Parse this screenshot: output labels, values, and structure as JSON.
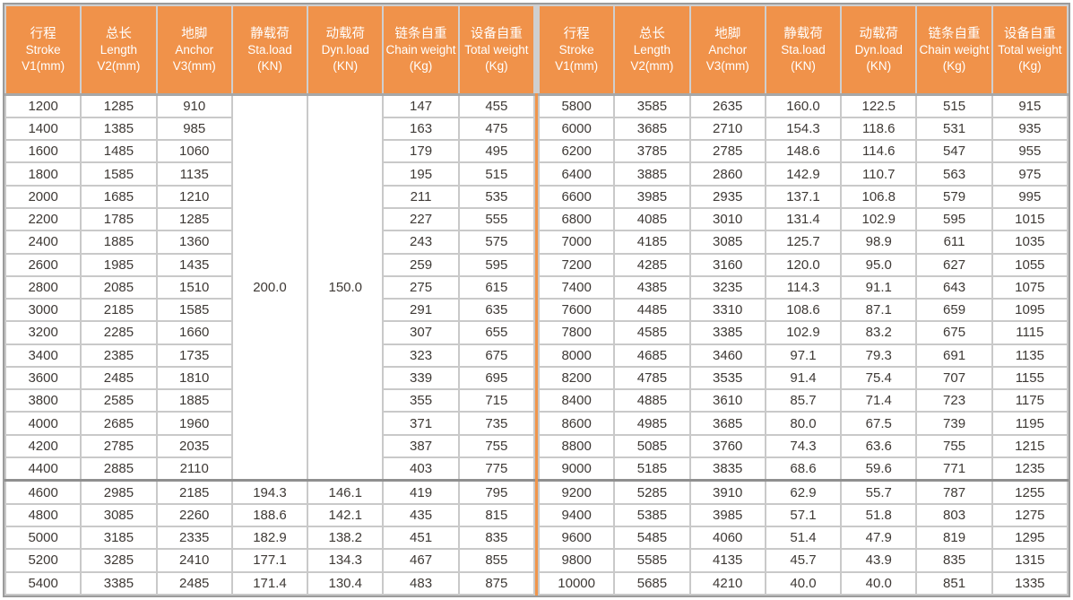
{
  "colors": {
    "header_bg": "#f0924a",
    "header_text": "#ffffff",
    "grid_line": "#c9c9c9",
    "major_line": "#8f8f8f",
    "outer_border": "#9b9b9b",
    "center_divider": "#f0954b",
    "body_text": "#3e3935"
  },
  "header_columns": [
    {
      "cn": "行程",
      "en": "Stroke",
      "unit": "V1(mm)"
    },
    {
      "cn": "总长",
      "en": "Length",
      "unit": "V2(mm)"
    },
    {
      "cn": "地脚",
      "en": "Anchor",
      "unit": "V3(mm)"
    },
    {
      "cn": "静载荷",
      "en": "Sta.load",
      "unit": "(KN)"
    },
    {
      "cn": "动载荷",
      "en": "Dyn.load",
      "unit": "(KN)"
    },
    {
      "cn": "链条自重",
      "en": "Chain weight",
      "unit": "(Kg)"
    },
    {
      "cn": "设备自重",
      "en": "Total weight",
      "unit": "(Kg)"
    }
  ],
  "left_table": {
    "merged": {
      "sta_load": "200.0",
      "dyn_load": "150.0",
      "row_span": 17
    },
    "rows": [
      [
        "1200",
        "1285",
        "910",
        null,
        null,
        "147",
        "455"
      ],
      [
        "1400",
        "1385",
        "985",
        null,
        null,
        "163",
        "475"
      ],
      [
        "1600",
        "1485",
        "1060",
        null,
        null,
        "179",
        "495"
      ],
      [
        "1800",
        "1585",
        "1135",
        null,
        null,
        "195",
        "515"
      ],
      [
        "2000",
        "1685",
        "1210",
        null,
        null,
        "211",
        "535"
      ],
      [
        "2200",
        "1785",
        "1285",
        null,
        null,
        "227",
        "555"
      ],
      [
        "2400",
        "1885",
        "1360",
        null,
        null,
        "243",
        "575"
      ],
      [
        "2600",
        "1985",
        "1435",
        null,
        null,
        "259",
        "595"
      ],
      [
        "2800",
        "2085",
        "1510",
        null,
        null,
        "275",
        "615"
      ],
      [
        "3000",
        "2185",
        "1585",
        null,
        null,
        "291",
        "635"
      ],
      [
        "3200",
        "2285",
        "1660",
        null,
        null,
        "307",
        "655"
      ],
      [
        "3400",
        "2385",
        "1735",
        null,
        null,
        "323",
        "675"
      ],
      [
        "3600",
        "2485",
        "1810",
        null,
        null,
        "339",
        "695"
      ],
      [
        "3800",
        "2585",
        "1885",
        null,
        null,
        "355",
        "715"
      ],
      [
        "4000",
        "2685",
        "1960",
        null,
        null,
        "371",
        "735"
      ],
      [
        "4200",
        "2785",
        "2035",
        null,
        null,
        "387",
        "755"
      ],
      [
        "4400",
        "2885",
        "2110",
        null,
        null,
        "403",
        "775"
      ],
      [
        "4600",
        "2985",
        "2185",
        "194.3",
        "146.1",
        "419",
        "795"
      ],
      [
        "4800",
        "3085",
        "2260",
        "188.6",
        "142.1",
        "435",
        "815"
      ],
      [
        "5000",
        "3185",
        "2335",
        "182.9",
        "138.2",
        "451",
        "835"
      ],
      [
        "5200",
        "3285",
        "2410",
        "177.1",
        "134.3",
        "467",
        "855"
      ],
      [
        "5400",
        "3385",
        "2485",
        "171.4",
        "130.4",
        "483",
        "875"
      ]
    ]
  },
  "right_table": {
    "rows": [
      [
        "5800",
        "3585",
        "2635",
        "160.0",
        "122.5",
        "515",
        "915"
      ],
      [
        "6000",
        "3685",
        "2710",
        "154.3",
        "118.6",
        "531",
        "935"
      ],
      [
        "6200",
        "3785",
        "2785",
        "148.6",
        "114.6",
        "547",
        "955"
      ],
      [
        "6400",
        "3885",
        "2860",
        "142.9",
        "110.7",
        "563",
        "975"
      ],
      [
        "6600",
        "3985",
        "2935",
        "137.1",
        "106.8",
        "579",
        "995"
      ],
      [
        "6800",
        "4085",
        "3010",
        "131.4",
        "102.9",
        "595",
        "1015"
      ],
      [
        "7000",
        "4185",
        "3085",
        "125.7",
        "98.9",
        "611",
        "1035"
      ],
      [
        "7200",
        "4285",
        "3160",
        "120.0",
        "95.0",
        "627",
        "1055"
      ],
      [
        "7400",
        "4385",
        "3235",
        "114.3",
        "91.1",
        "643",
        "1075"
      ],
      [
        "7600",
        "4485",
        "3310",
        "108.6",
        "87.1",
        "659",
        "1095"
      ],
      [
        "7800",
        "4585",
        "3385",
        "102.9",
        "83.2",
        "675",
        "1115"
      ],
      [
        "8000",
        "4685",
        "3460",
        "97.1",
        "79.3",
        "691",
        "1135"
      ],
      [
        "8200",
        "4785",
        "3535",
        "91.4",
        "75.4",
        "707",
        "1155"
      ],
      [
        "8400",
        "4885",
        "3610",
        "85.7",
        "71.4",
        "723",
        "1175"
      ],
      [
        "8600",
        "4985",
        "3685",
        "80.0",
        "67.5",
        "739",
        "1195"
      ],
      [
        "8800",
        "5085",
        "3760",
        "74.3",
        "63.6",
        "755",
        "1215"
      ],
      [
        "9000",
        "5185",
        "3835",
        "68.6",
        "59.6",
        "771",
        "1235"
      ],
      [
        "9200",
        "5285",
        "3910",
        "62.9",
        "55.7",
        "787",
        "1255"
      ],
      [
        "9400",
        "5385",
        "3985",
        "57.1",
        "51.8",
        "803",
        "1275"
      ],
      [
        "9600",
        "5485",
        "4060",
        "51.4",
        "47.9",
        "819",
        "1295"
      ],
      [
        "9800",
        "5585",
        "4135",
        "45.7",
        "43.9",
        "835",
        "1315"
      ],
      [
        "10000",
        "5685",
        "4210",
        "40.0",
        "40.0",
        "851",
        "1335"
      ]
    ]
  }
}
